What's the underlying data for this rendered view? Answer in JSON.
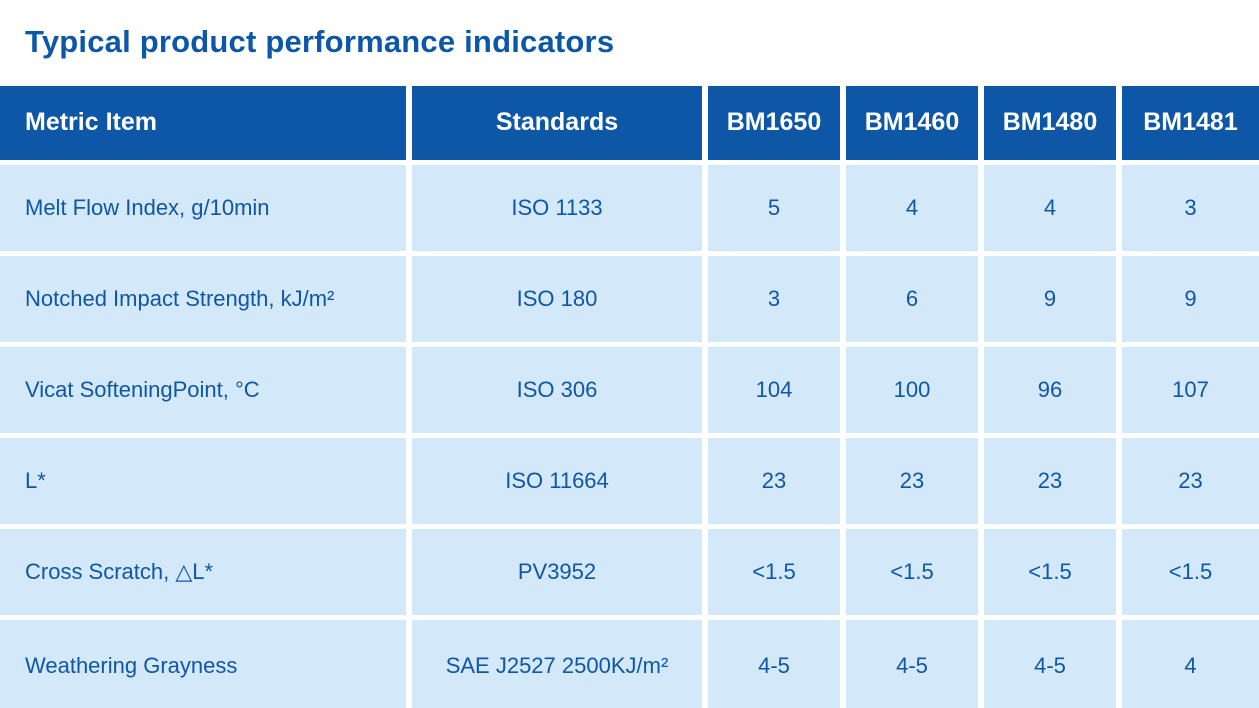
{
  "page": {
    "title": "Typical product performance indicators"
  },
  "colors": {
    "header_bg": "#0E56A6",
    "row_bg": "#D3E8F8",
    "text_blue": "#0F57A5",
    "title_blue": "#0C57A8",
    "gutter": "#FFFFFF"
  },
  "table": {
    "columns": [
      "Metric Item",
      "Standards",
      "BM1650",
      "BM1460",
      "BM1480",
      "BM1481"
    ],
    "rows": [
      {
        "metric": "Melt Flow Index, g/10min",
        "standard": "ISO 1133",
        "values": [
          "5",
          "4",
          "4",
          "3"
        ]
      },
      {
        "metric": "Notched Impact Strength, kJ/m²",
        "standard": "ISO 180",
        "values": [
          "3",
          "6",
          "9",
          "9"
        ]
      },
      {
        "metric": "Vicat SofteningPoint, °C",
        "standard": "ISO 306",
        "values": [
          "104",
          "100",
          "96",
          "107"
        ]
      },
      {
        "metric": "L*",
        "standard": "ISO 11664",
        "values": [
          "23",
          "23",
          "23",
          "23"
        ]
      },
      {
        "metric": "Cross Scratch, △L*",
        "standard": "PV3952",
        "values": [
          "<1.5",
          "<1.5",
          "<1.5",
          "<1.5"
        ]
      },
      {
        "metric": "Weathering Grayness",
        "standard": "SAE J2527 2500KJ/m²",
        "values": [
          "4-5",
          "4-5",
          "4-5",
          "4"
        ]
      }
    ]
  }
}
